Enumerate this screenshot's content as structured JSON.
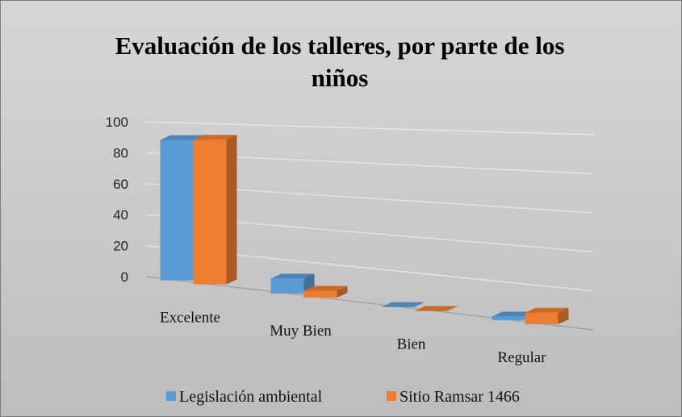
{
  "chart_data": {
    "type": "bar3d",
    "title": "Evaluación de los talleres, por parte de los niños",
    "categories": [
      "Excelente",
      "Muy Bien",
      "Bien",
      "Regular"
    ],
    "series": [
      {
        "name": "Legislación ambiental",
        "color": "#5b9bd5",
        "values": [
          89,
          9,
          0,
          2
        ]
      },
      {
        "name": "Sitio Ramsar 1466",
        "color": "#ed7d31",
        "values": [
          90,
          4,
          0,
          6
        ]
      }
    ],
    "ylim": [
      0,
      100
    ],
    "yticks": [
      0,
      20,
      40,
      60,
      80,
      100
    ],
    "grid": true,
    "legend": "bottom"
  }
}
